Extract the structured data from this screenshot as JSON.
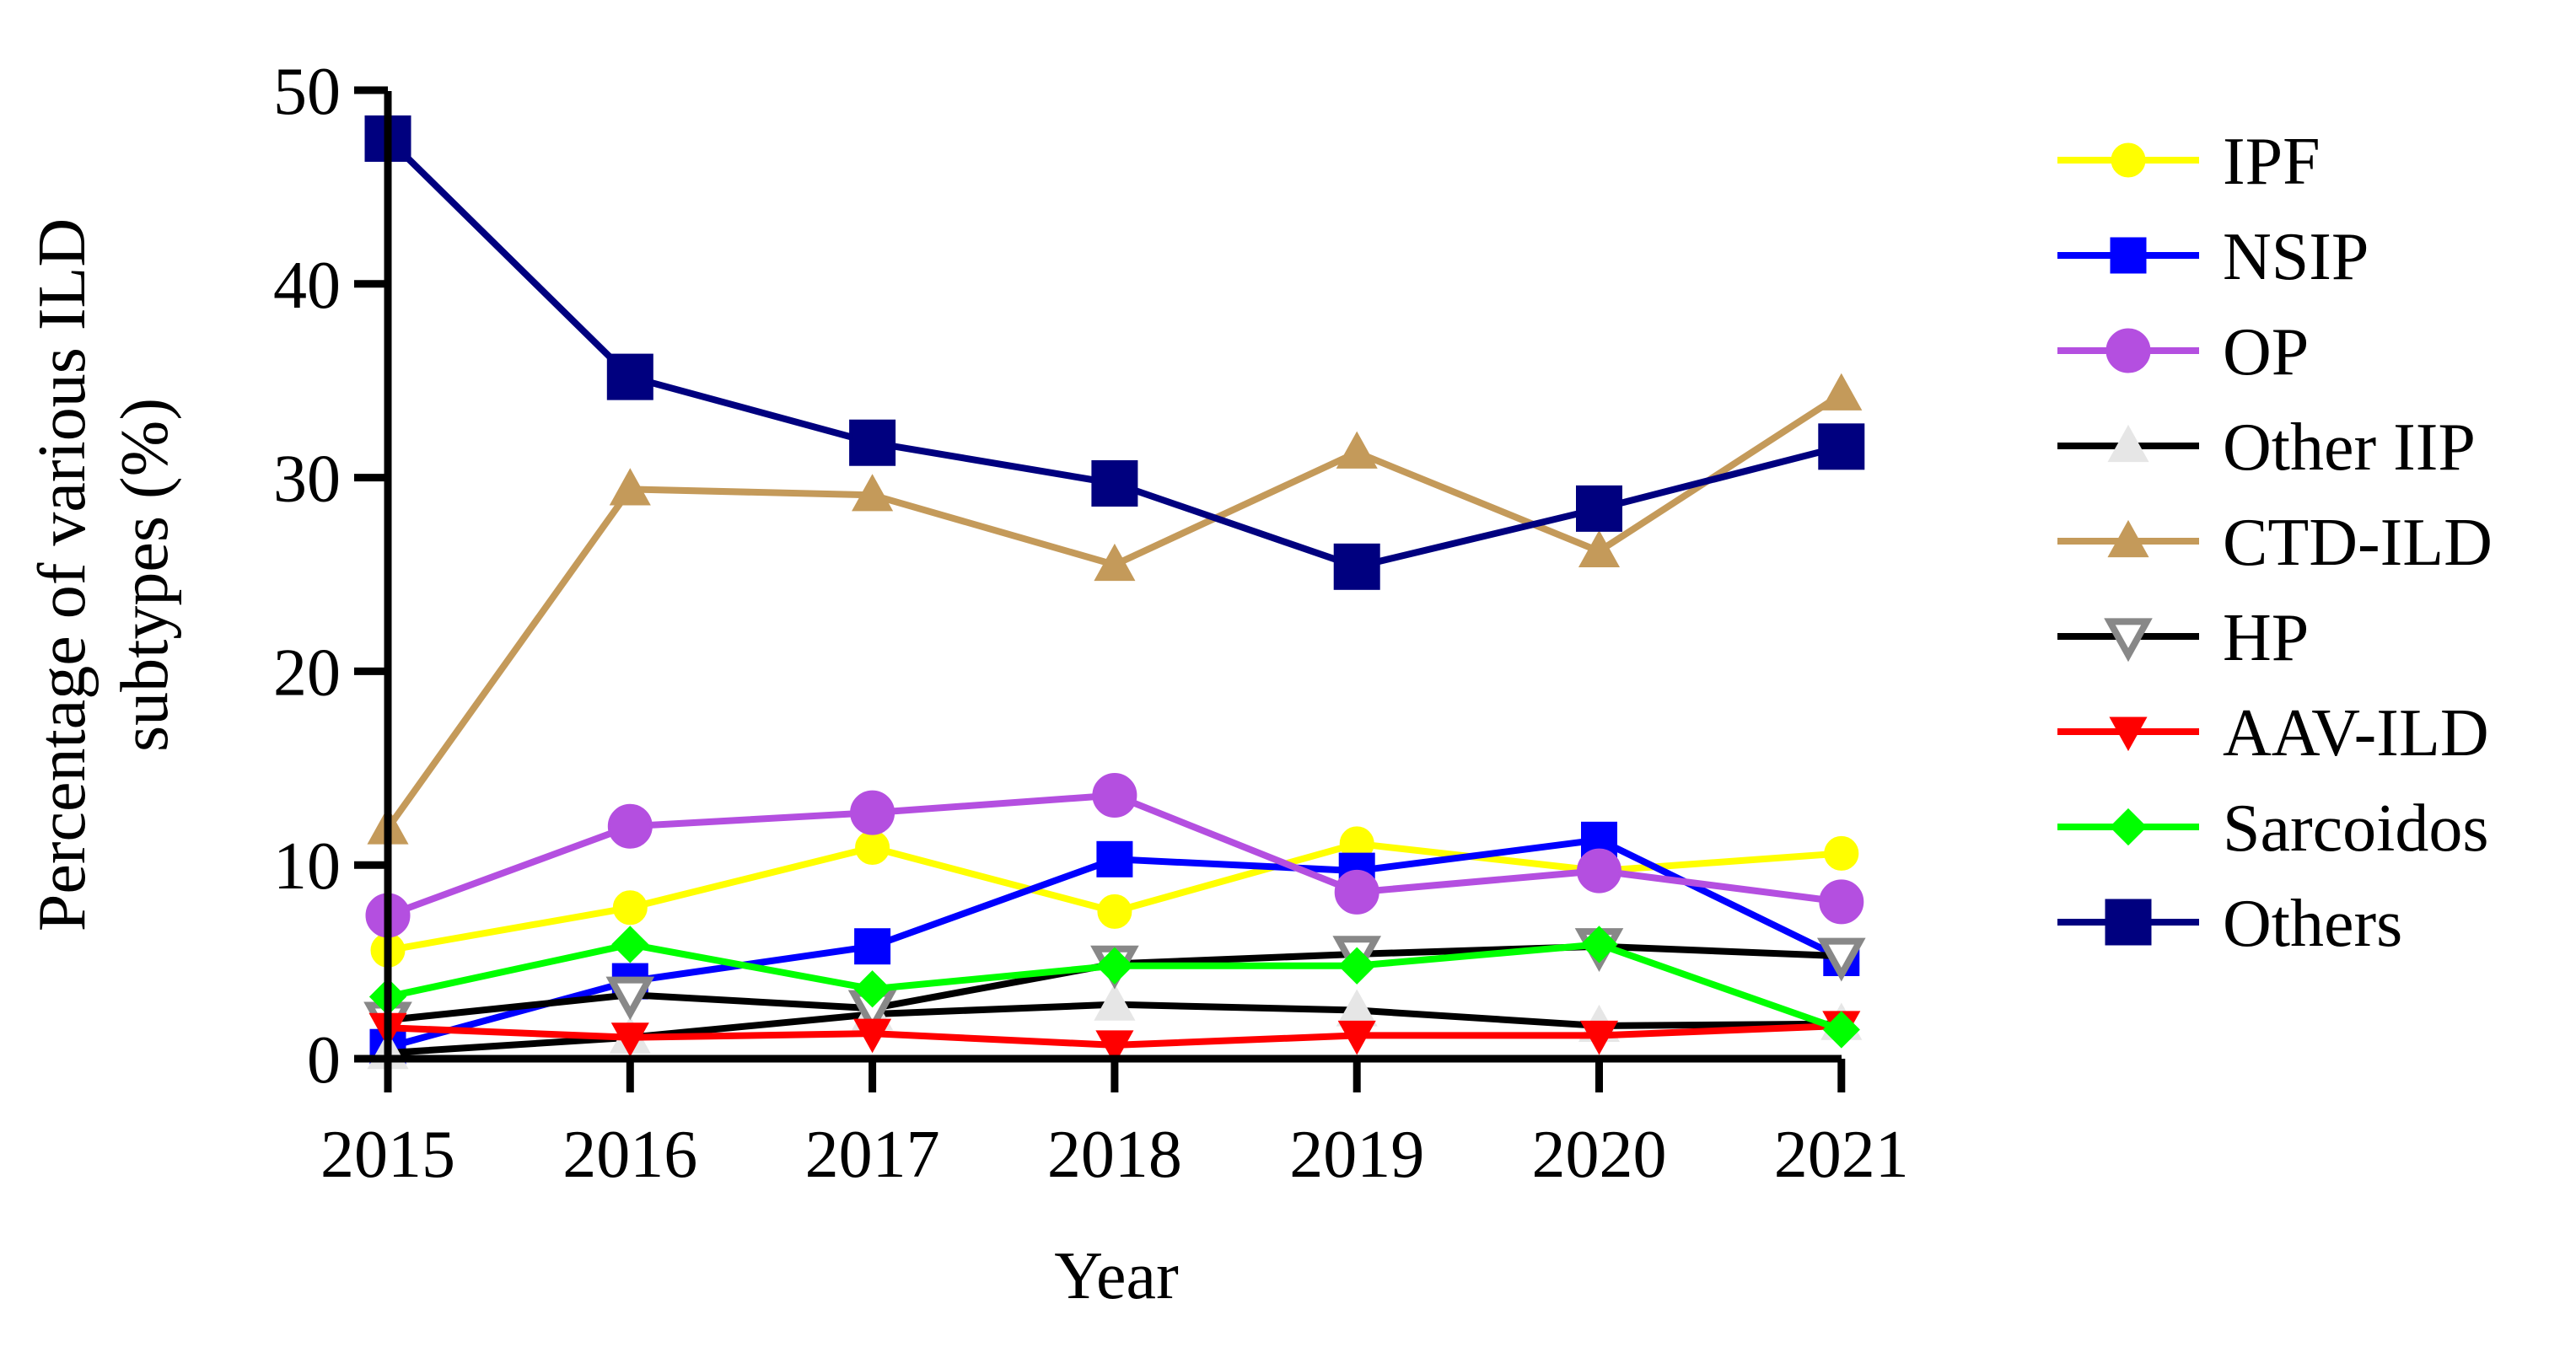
{
  "chart_data": {
    "type": "line",
    "title": "",
    "xlabel": "Year",
    "ylabel_line1": "Percentage of various ILD",
    "ylabel_line2": "subtypes (%)",
    "x": [
      "2015",
      "2016",
      "2017",
      "2018",
      "2019",
      "2020",
      "2021"
    ],
    "ylim": [
      0,
      50
    ],
    "yticks": [
      "0",
      "10",
      "20",
      "30",
      "40",
      "50"
    ],
    "grid": false,
    "legend_position": "right",
    "series": [
      {
        "name": "IPF",
        "key": "ipf",
        "color": "#ffff00",
        "line_color": "#ffff00",
        "marker": "circle",
        "marker_fill": "#ffff00",
        "marker_stroke": "#ffff00",
        "values": [
          5.6,
          7.8,
          10.9,
          7.6,
          11.1,
          9.7,
          10.6
        ]
      },
      {
        "name": "NSIP",
        "key": "nsip",
        "color": "#0000ff",
        "line_color": "#0000ff",
        "marker": "square",
        "marker_fill": "#0000ff",
        "marker_stroke": "#0000ff",
        "values": [
          0.6,
          4.0,
          5.8,
          10.3,
          9.7,
          11.3,
          5.2
        ]
      },
      {
        "name": "OP",
        "key": "op",
        "color": "#b44fe0",
        "line_color": "#b44fe0",
        "marker": "circle-large",
        "marker_fill": "#b44fe0",
        "marker_stroke": "#b44fe0",
        "values": [
          7.4,
          12.0,
          12.7,
          13.6,
          8.6,
          9.7,
          8.1
        ]
      },
      {
        "name": "Other IIP",
        "key": "other-iip",
        "color": "#000000",
        "line_color": "#000000",
        "marker": "triangle-up",
        "marker_fill": "#e6e6e6",
        "marker_stroke": "#e6e6e6",
        "values": [
          0.3,
          1.1,
          2.3,
          2.8,
          2.5,
          1.7,
          1.8
        ]
      },
      {
        "name": "CTD-ILD",
        "key": "ctd-ild",
        "color": "#c49a5a",
        "line_color": "#c49a5a",
        "marker": "triangle-up",
        "marker_fill": "#c49a5a",
        "marker_stroke": "#c49a5a",
        "values": [
          11.9,
          29.4,
          29.1,
          25.5,
          31.3,
          26.2,
          34.3
        ]
      },
      {
        "name": "HP",
        "key": "hp",
        "color": "#000000",
        "line_color": "#000000",
        "marker": "triangle-down-open",
        "marker_fill": "#ffffff",
        "marker_stroke": "#888888",
        "values": [
          2.0,
          3.3,
          2.6,
          4.9,
          5.4,
          5.8,
          5.3
        ]
      },
      {
        "name": "AAV-ILD",
        "key": "aav-ild",
        "color": "#ff0000",
        "line_color": "#ff0000",
        "marker": "triangle-down",
        "marker_fill": "#ff0000",
        "marker_stroke": "#ff0000",
        "values": [
          1.6,
          1.1,
          1.3,
          0.7,
          1.2,
          1.2,
          1.7
        ]
      },
      {
        "name": "Sarcoidos",
        "key": "sarcoidos",
        "color": "#00ff00",
        "line_color": "#00ff00",
        "marker": "diamond",
        "marker_fill": "#00ff00",
        "marker_stroke": "#00ff00",
        "values": [
          3.2,
          5.9,
          3.6,
          4.8,
          4.8,
          5.9,
          1.5
        ]
      },
      {
        "name": "Others",
        "key": "others",
        "color": "#00007f",
        "line_color": "#00007f",
        "marker": "square-large",
        "marker_fill": "#00007f",
        "marker_stroke": "#00007f",
        "values": [
          47.5,
          35.2,
          31.8,
          29.7,
          25.4,
          28.4,
          31.6
        ]
      }
    ]
  }
}
